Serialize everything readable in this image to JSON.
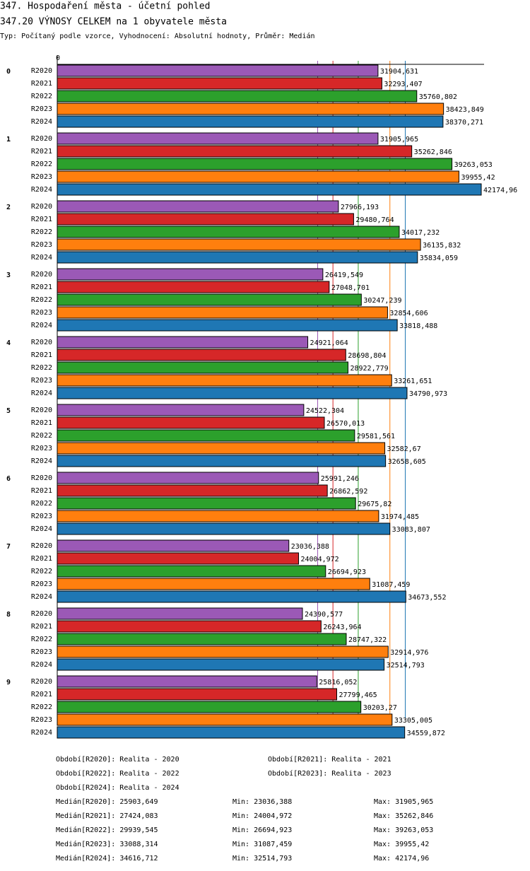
{
  "chart_data": {
    "type": "hbar-grouped",
    "title": "347. Hospodaření města - účetní pohled",
    "subtitle": "347.20 VÝNOSY CELKEM na 1 obyvatele města",
    "description": "Typ: Počítaný podle vzorce, Vyhodnocení: Absolutní hodnoty, Průměr: Medián",
    "categories": [
      "0",
      "1",
      "2",
      "3",
      "4",
      "5",
      "6",
      "7",
      "8",
      "9"
    ],
    "xlim": [
      0,
      42455
    ],
    "xticks": [
      0
    ],
    "series": [
      {
        "name": "R2020",
        "color": "#9b59b6",
        "values": [
          31904.631,
          31905.965,
          27966.193,
          26419.549,
          24921.064,
          24522.304,
          25991.246,
          23036.388,
          24390.577,
          25816.052
        ],
        "value_labels": [
          "31904,631",
          "31905,965",
          "27966,193",
          "26419,549",
          "24921,064",
          "24522,304",
          "25991,246",
          "23036,388",
          "24390,577",
          "25816,052"
        ]
      },
      {
        "name": "R2021",
        "color": "#d62728",
        "values": [
          32293.407,
          35262.846,
          29480.764,
          27048.701,
          28698.804,
          26570.013,
          26862.592,
          24004.972,
          26243.964,
          27799.465
        ],
        "value_labels": [
          "32293,407",
          "35262,846",
          "29480,764",
          "27048,701",
          "28698,804",
          "26570,013",
          "26862,592",
          "24004,972",
          "26243,964",
          "27799,465"
        ]
      },
      {
        "name": "R2022",
        "color": "#2ca02c",
        "values": [
          35760.802,
          39263.053,
          34017.232,
          30247.239,
          28922.779,
          29581.561,
          29675.82,
          26694.923,
          28747.322,
          30203.27
        ],
        "value_labels": [
          "35760,802",
          "39263,053",
          "34017,232",
          "30247,239",
          "28922,779",
          "29581,561",
          "29675,82",
          "26694,923",
          "28747,322",
          "30203,27"
        ]
      },
      {
        "name": "R2023",
        "color": "#ff7f0e",
        "values": [
          38423.849,
          39955.42,
          36135.832,
          32854.606,
          33261.651,
          32582.67,
          31974.485,
          31087.459,
          32914.976,
          33305.005
        ],
        "value_labels": [
          "38423,849",
          "39955,42",
          "36135,832",
          "32854,606",
          "33261,651",
          "32582,67",
          "31974,485",
          "31087,459",
          "32914,976",
          "33305,005"
        ]
      },
      {
        "name": "R2024",
        "color": "#1f77b4",
        "values": [
          38370.271,
          42174.96,
          35834.059,
          33818.488,
          34790.973,
          32658.605,
          33083.807,
          34673.552,
          32514.793,
          34559.872
        ],
        "value_labels": [
          "38370,271",
          "42174,96",
          "35834,059",
          "33818,488",
          "34790,973",
          "32658,605",
          "33083,807",
          "34673,552",
          "32514,793",
          "34559,872"
        ]
      }
    ],
    "legend": [
      "Období[R2020]: Realita - 2020",
      "Období[R2021]: Realita - 2021",
      "Období[R2022]: Realita - 2022",
      "Období[R2023]: Realita - 2023",
      "Období[R2024]: Realita - 2024"
    ],
    "stats": [
      {
        "median_text": "Medián[R2020]:",
        "median": 25903.649,
        "median_label": "25903,649",
        "min_text": "Min:",
        "min": 23036.388,
        "min_label": "23036,388",
        "max_text": "Max:",
        "max": 31905.965,
        "max_label": "31905,965"
      },
      {
        "median_text": "Medián[R2021]:",
        "median": 27424.083,
        "median_label": "27424,083",
        "min_text": "Min:",
        "min": 24004.972,
        "min_label": "24004,972",
        "max_text": "Max:",
        "max": 35262.846,
        "max_label": "35262,846"
      },
      {
        "median_text": "Medián[R2022]:",
        "median": 29939.545,
        "median_label": "29939,545",
        "min_text": "Min:",
        "min": 26694.923,
        "min_label": "26694,923",
        "max_text": "Max:",
        "max": 39263.053,
        "max_label": "39263,053"
      },
      {
        "median_text": "Medián[R2023]:",
        "median": 33088.314,
        "median_label": "33088,314",
        "min_text": "Min:",
        "min": 31087.459,
        "min_label": "31087,459",
        "max_text": "Max:",
        "max": 39955.42,
        "max_label": "39955,42"
      },
      {
        "median_text": "Medián[R2024]:",
        "median": 34616.712,
        "median_label": "34616,712",
        "min_text": "Min:",
        "min": 32514.793,
        "min_label": "32514,793",
        "max_text": "Max:",
        "max": 42174.96,
        "max_label": "42174,96"
      }
    ]
  }
}
